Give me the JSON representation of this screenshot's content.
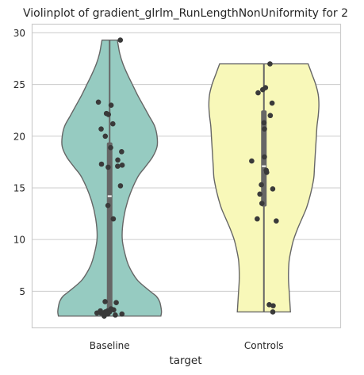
{
  "chart_data": {
    "type": "violin",
    "title": "Violinplot of gradient_glrlm_RunLengthNonUniformity for 2",
    "xlabel": "target",
    "ylabel": "",
    "ylim": [
      1.5,
      30.8
    ],
    "yticks": [
      5,
      10,
      15,
      20,
      25,
      30
    ],
    "grid": "horizontal",
    "categories": [
      "Baseline",
      "Controls"
    ],
    "colors": {
      "Baseline": "#96cbc1",
      "Controls": "#f8f8b9",
      "outline": "#666666",
      "points": "#3a3a3a",
      "box": "#666666",
      "median": "#ffffff"
    },
    "violins": [
      {
        "category": "Baseline",
        "range": [
          2.6,
          29.3
        ],
        "box": {
          "q1": 2.9,
          "median": 14.2,
          "q3": 19.4,
          "whisker_low": 2.6,
          "whisker_high": 29.3
        },
        "profile": [
          [
            2.6,
            0.81
          ],
          [
            3.0,
            0.82
          ],
          [
            3.5,
            0.81
          ],
          [
            4.0,
            0.79
          ],
          [
            4.5,
            0.74
          ],
          [
            5.0,
            0.64
          ],
          [
            6.0,
            0.45
          ],
          [
            7.0,
            0.34
          ],
          [
            8.0,
            0.27
          ],
          [
            10.0,
            0.2
          ],
          [
            12.0,
            0.22
          ],
          [
            14.0,
            0.3
          ],
          [
            16.0,
            0.44
          ],
          [
            17.0,
            0.56
          ],
          [
            18.0,
            0.68
          ],
          [
            19.0,
            0.75
          ],
          [
            20.0,
            0.75
          ],
          [
            21.0,
            0.71
          ],
          [
            22.0,
            0.62
          ],
          [
            23.0,
            0.53
          ],
          [
            24.0,
            0.44
          ],
          [
            25.0,
            0.36
          ],
          [
            26.0,
            0.28
          ],
          [
            27.0,
            0.21
          ],
          [
            28.0,
            0.16
          ],
          [
            29.0,
            0.13
          ],
          [
            29.3,
            0.12
          ]
        ],
        "points": [
          29.3,
          23.3,
          23.0,
          22.2,
          22.1,
          21.2,
          20.7,
          20.0,
          18.9,
          18.5,
          17.7,
          17.3,
          17.2,
          17.1,
          17.0,
          15.2,
          13.3,
          12.0,
          4.0,
          3.9,
          3.3,
          3.2,
          3.1,
          3.1,
          3.0,
          3.0,
          2.9,
          2.9,
          2.8,
          2.8,
          2.7,
          2.6
        ]
      },
      {
        "category": "Controls",
        "range": [
          3.0,
          27.0
        ],
        "box": {
          "q1": 13.2,
          "median": 17.1,
          "q3": 22.5,
          "whisker_low": 3.0,
          "whisker_high": 27.0
        },
        "profile": [
          [
            3.0,
            0.42
          ],
          [
            4.0,
            0.41
          ],
          [
            5.0,
            0.4
          ],
          [
            6.0,
            0.39
          ],
          [
            7.0,
            0.39
          ],
          [
            8.0,
            0.4
          ],
          [
            9.0,
            0.43
          ],
          [
            10.0,
            0.47
          ],
          [
            11.0,
            0.53
          ],
          [
            12.0,
            0.6
          ],
          [
            13.0,
            0.67
          ],
          [
            14.0,
            0.72
          ],
          [
            15.0,
            0.76
          ],
          [
            16.0,
            0.79
          ],
          [
            17.0,
            0.8
          ],
          [
            18.0,
            0.81
          ],
          [
            19.0,
            0.82
          ],
          [
            20.0,
            0.83
          ],
          [
            21.0,
            0.84
          ],
          [
            22.0,
            0.86
          ],
          [
            23.0,
            0.87
          ],
          [
            24.0,
            0.86
          ],
          [
            25.0,
            0.82
          ],
          [
            26.0,
            0.76
          ],
          [
            27.0,
            0.7
          ]
        ],
        "points": [
          27.0,
          24.7,
          24.5,
          24.2,
          23.2,
          22.0,
          21.3,
          20.7,
          18.0,
          17.6,
          16.7,
          16.5,
          15.3,
          14.9,
          14.4,
          13.5,
          12.0,
          11.8,
          3.7,
          3.6,
          3.0
        ]
      }
    ]
  }
}
